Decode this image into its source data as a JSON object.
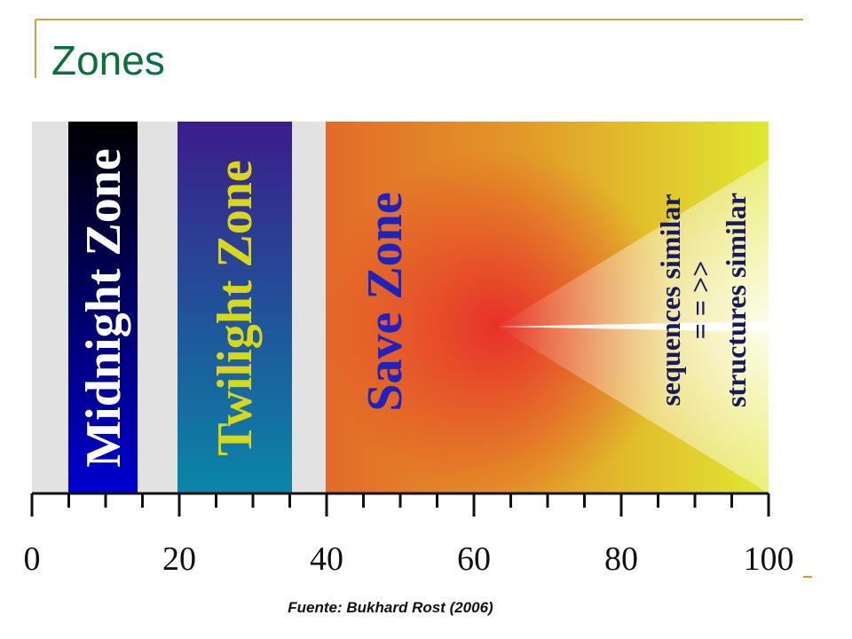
{
  "header": {
    "title": "Zones"
  },
  "diagram": {
    "zones": [
      {
        "label": "Midnight Zone"
      },
      {
        "label": "Twilight Zone"
      },
      {
        "label": "Save Zone"
      }
    ],
    "notes": [
      "sequences similar",
      "= = >>",
      "structures similar"
    ],
    "axis": {
      "ticks": [
        0,
        20,
        40,
        60,
        80,
        100
      ]
    }
  },
  "footer": {
    "source": "Fuente: Bukhard Rost (2006)"
  }
}
